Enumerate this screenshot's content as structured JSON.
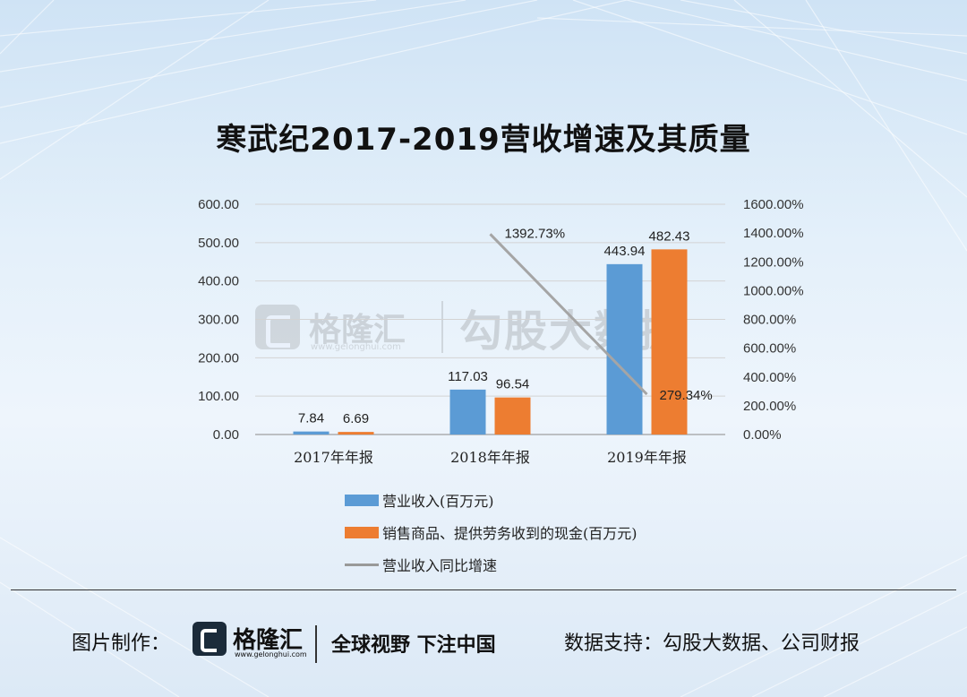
{
  "chart_data": {
    "type": "bar",
    "title": "寒武纪2017-2019营收增速及其质量",
    "categories": [
      "2017年年报",
      "2018年年报",
      "2019年年报"
    ],
    "series": [
      {
        "name": "营业收入(百万元)",
        "type": "bar",
        "axis": "left",
        "color": "#5b9bd5",
        "values": [
          7.84,
          117.03,
          443.94
        ],
        "labels": [
          "7.84",
          "117.03",
          "443.94"
        ]
      },
      {
        "name": "销售商品、提供劳务收到的现金(百万元)",
        "type": "bar",
        "axis": "left",
        "color": "#ed7d31",
        "values": [
          6.69,
          96.54,
          482.43
        ],
        "labels": [
          "6.69",
          "96.54",
          "482.43"
        ]
      },
      {
        "name": "营业收入同比增速",
        "type": "line",
        "axis": "right",
        "color": "#a5a5a5",
        "values": [
          null,
          1392.73,
          279.34
        ],
        "labels": [
          "",
          "1392.73%",
          "279.34%"
        ]
      }
    ],
    "y_left": {
      "min": 0,
      "max": 600,
      "ticks": [
        "0.00",
        "100.00",
        "200.00",
        "300.00",
        "400.00",
        "500.00",
        "600.00"
      ]
    },
    "y_right": {
      "min": 0,
      "max": 1600,
      "ticks": [
        "0.00%",
        "200.00%",
        "400.00%",
        "600.00%",
        "800.00%",
        "1000.00%",
        "1200.00%",
        "1400.00%",
        "1600.00%"
      ]
    },
    "grid": true,
    "legend_position": "bottom"
  },
  "watermark": {
    "brand": "格隆汇",
    "site": "www.gelonghui.com",
    "partner": "勾股大数据"
  },
  "footer": {
    "made_by": "图片制作：",
    "brand": "格隆汇",
    "site": "www.gelonghui.com",
    "slogan": "全球视野 下注中国",
    "source": "数据支持：勾股大数据、公司财报"
  }
}
